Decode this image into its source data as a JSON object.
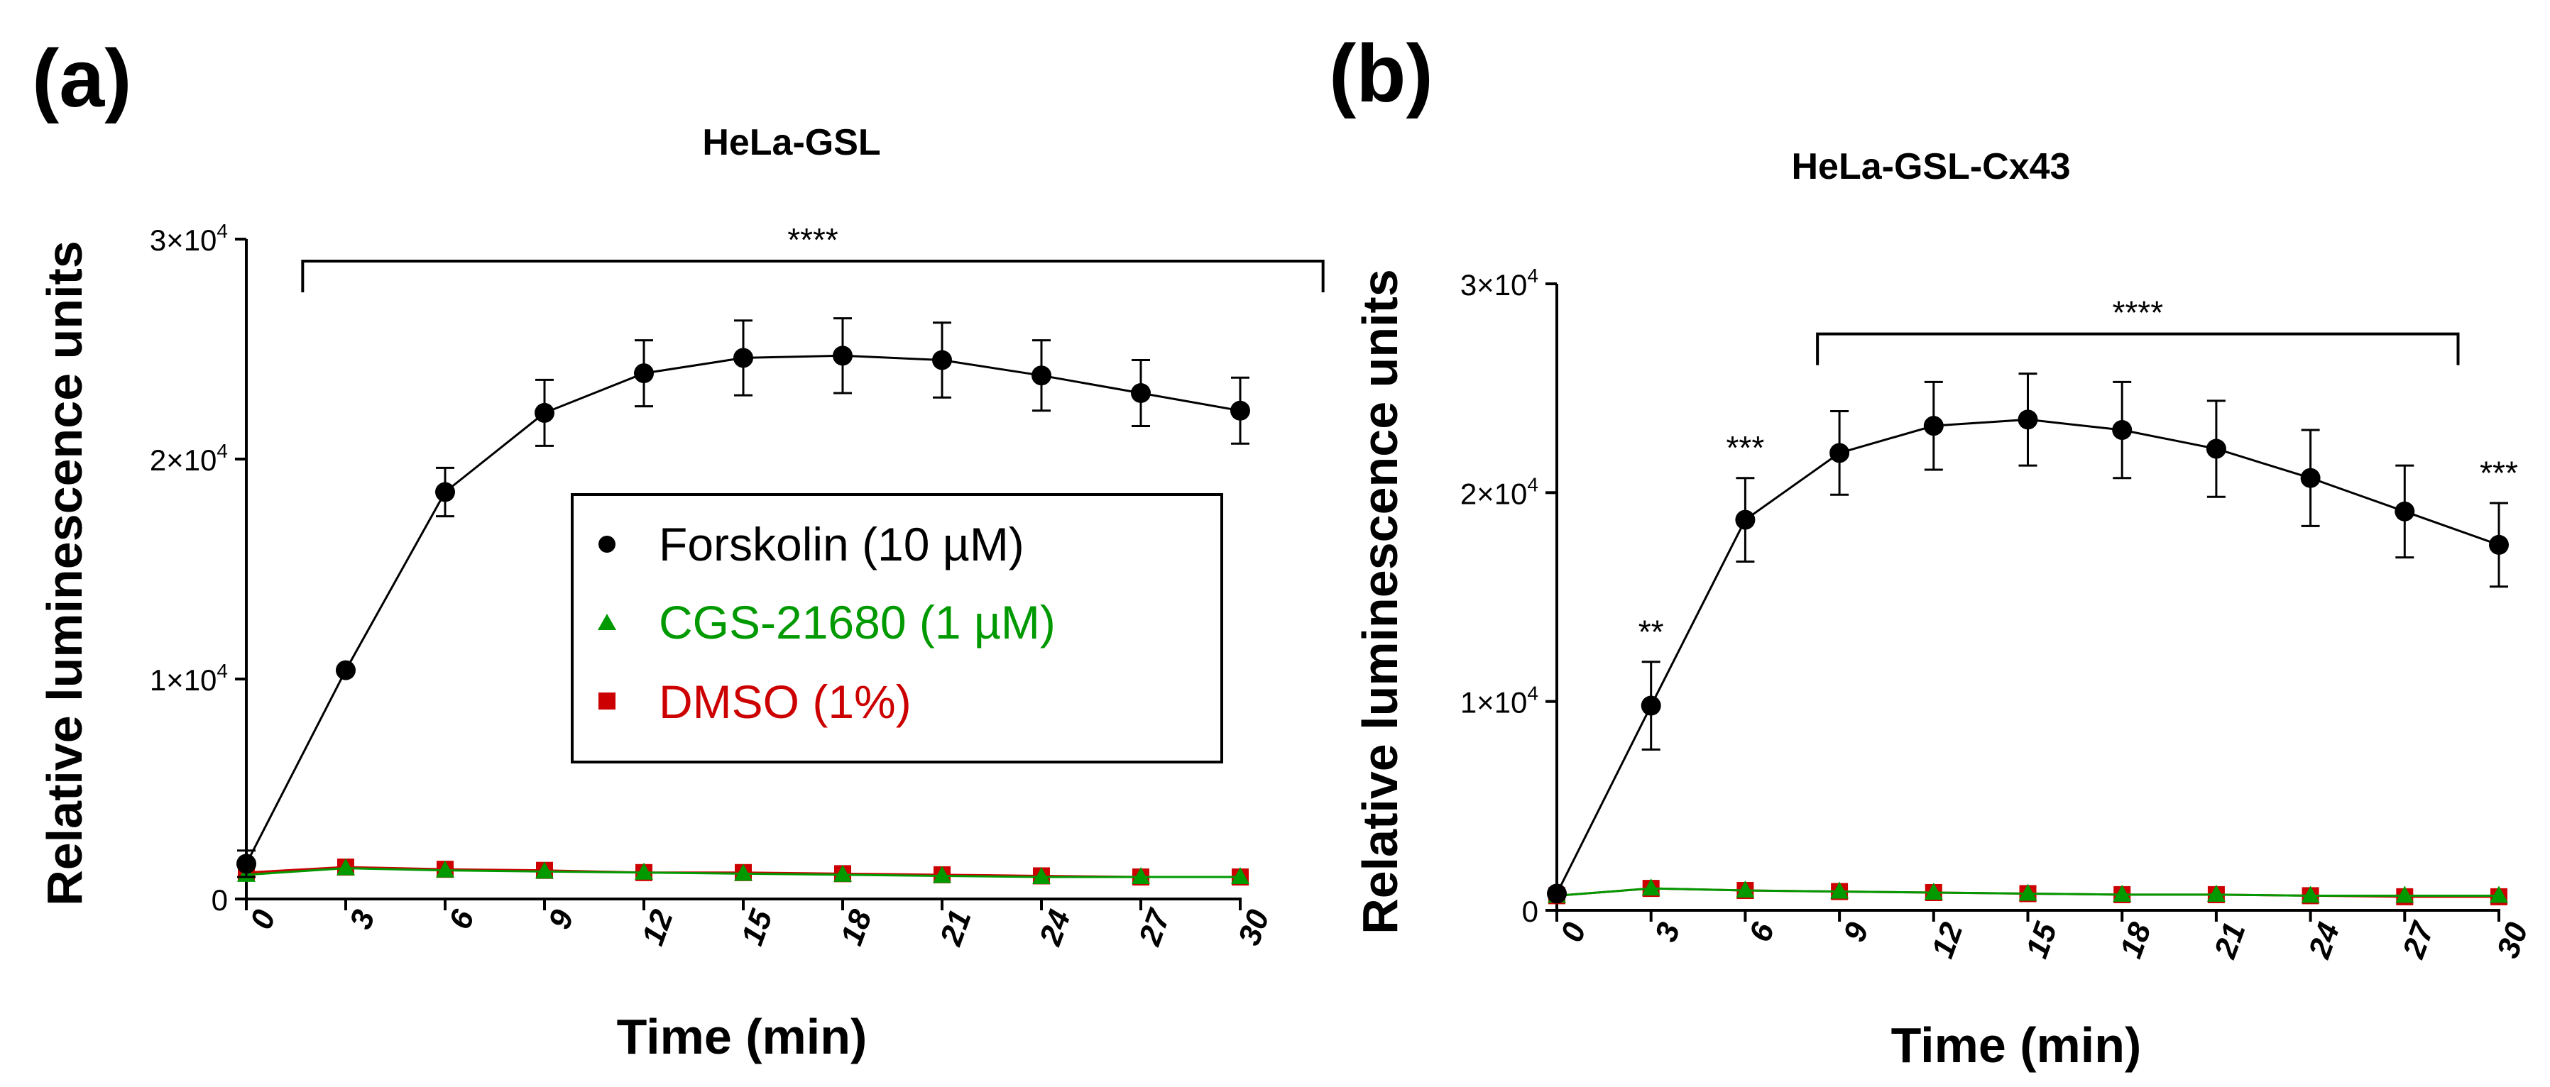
{
  "panels": [
    {
      "chart_data": {
        "type": "line",
        "panel_label": "(a)",
        "title": "HeLa-GSL",
        "xlabel": "Time (min)",
        "ylabel": "Relative luminescence units",
        "xlim": [
          0,
          30
        ],
        "ylim": [
          0,
          30000
        ],
        "x": [
          0,
          3,
          6,
          9,
          12,
          15,
          18,
          21,
          24,
          27,
          30
        ],
        "x_tick_labels": [
          "0",
          "3",
          "6",
          "9",
          "12",
          "15",
          "18",
          "21",
          "24",
          "27",
          "30"
        ],
        "y_ticks": [
          {
            "value": 0,
            "base": "0",
            "exp": ""
          },
          {
            "value": 10000,
            "base": "1×10",
            "exp": "4"
          },
          {
            "value": 20000,
            "base": "2×10",
            "exp": "4"
          },
          {
            "value": 30000,
            "base": "3×10",
            "exp": "4"
          }
        ],
        "series": [
          {
            "name": "Forskolin (10 µM)",
            "color": "#000000",
            "marker": "circle",
            "values": [
              1600,
              10400,
              18500,
              22100,
              23900,
              24600,
              24700,
              24500,
              23800,
              23000,
              22200
            ],
            "errors": [
              600,
              0,
              1100,
              1500,
              1500,
              1700,
              1700,
              1700,
              1600,
              1500,
              1500
            ]
          },
          {
            "name": "CGS-21680 (1 µM)",
            "color": "#009900",
            "marker": "triangle",
            "values": [
              1100,
              1400,
              1300,
              1250,
              1200,
              1150,
              1100,
              1050,
              1000,
              1000,
              1000
            ],
            "errors": [
              0,
              0,
              0,
              0,
              0,
              0,
              0,
              0,
              0,
              0,
              0
            ]
          },
          {
            "name": "DMSO (1%)",
            "color": "#cc0000",
            "marker": "square",
            "values": [
              1200,
              1450,
              1350,
              1300,
              1200,
              1200,
              1150,
              1100,
              1050,
              1000,
              1000
            ],
            "errors": [
              0,
              0,
              0,
              0,
              0,
              0,
              0,
              0,
              0,
              0,
              0
            ]
          }
        ],
        "legend": {
          "position": "center-right",
          "entries": [
            "Forskolin (10 µM)",
            "CGS-21680 (1 µM)",
            "DMSO (1%)"
          ]
        },
        "annotations": [
          {
            "text": "****",
            "type": "bracket",
            "x_from": 1.7,
            "x_to": 32.5,
            "y": 29000
          }
        ]
      }
    },
    {
      "chart_data": {
        "type": "line",
        "panel_label": "(b)",
        "title": "HeLa-GSL-Cx43",
        "xlabel": "Time (min)",
        "ylabel": "Relative luminescence units",
        "xlim": [
          0,
          30
        ],
        "ylim": [
          0,
          30000
        ],
        "x": [
          0,
          3,
          6,
          9,
          12,
          15,
          18,
          21,
          24,
          27,
          30
        ],
        "x_tick_labels": [
          "0",
          "3",
          "6",
          "9",
          "12",
          "15",
          "18",
          "21",
          "24",
          "27",
          "30"
        ],
        "y_ticks": [
          {
            "value": 0,
            "base": "0",
            "exp": ""
          },
          {
            "value": 10000,
            "base": "1×10",
            "exp": "4"
          },
          {
            "value": 20000,
            "base": "2×10",
            "exp": "4"
          },
          {
            "value": 30000,
            "base": "3×10",
            "exp": "4"
          }
        ],
        "series": [
          {
            "name": "Forskolin (10 µM)",
            "color": "#000000",
            "marker": "circle",
            "values": [
              800,
              9800,
              18700,
              21900,
              23200,
              23500,
              23000,
              22100,
              20700,
              19100,
              17500
            ],
            "errors": [
              0,
              2100,
              2000,
              2000,
              2100,
              2200,
              2300,
              2300,
              2300,
              2200,
              2000
            ]
          },
          {
            "name": "CGS-21680 (1 µM)",
            "color": "#009900",
            "marker": "triangle",
            "values": [
              700,
              1050,
              950,
              900,
              850,
              800,
              750,
              750,
              700,
              700,
              700
            ],
            "errors": [
              0,
              0,
              0,
              0,
              0,
              0,
              0,
              0,
              0,
              0,
              0
            ]
          },
          {
            "name": "DMSO (1%)",
            "color": "#cc0000",
            "marker": "square",
            "values": [
              700,
              1050,
              950,
              900,
              850,
              800,
              750,
              750,
              700,
              650,
              650
            ],
            "errors": [
              0,
              0,
              0,
              0,
              0,
              0,
              0,
              0,
              0,
              0,
              0
            ]
          }
        ],
        "annotations": [
          {
            "text": "**",
            "type": "star",
            "x": 3,
            "y": 12800
          },
          {
            "text": "***",
            "type": "star",
            "x": 6,
            "y": 21600
          },
          {
            "text": "****",
            "type": "bracket",
            "x_from": 8.3,
            "x_to": 28.7,
            "y": 27600
          },
          {
            "text": "***",
            "type": "star",
            "x": 30,
            "y": 20400
          }
        ]
      }
    }
  ]
}
